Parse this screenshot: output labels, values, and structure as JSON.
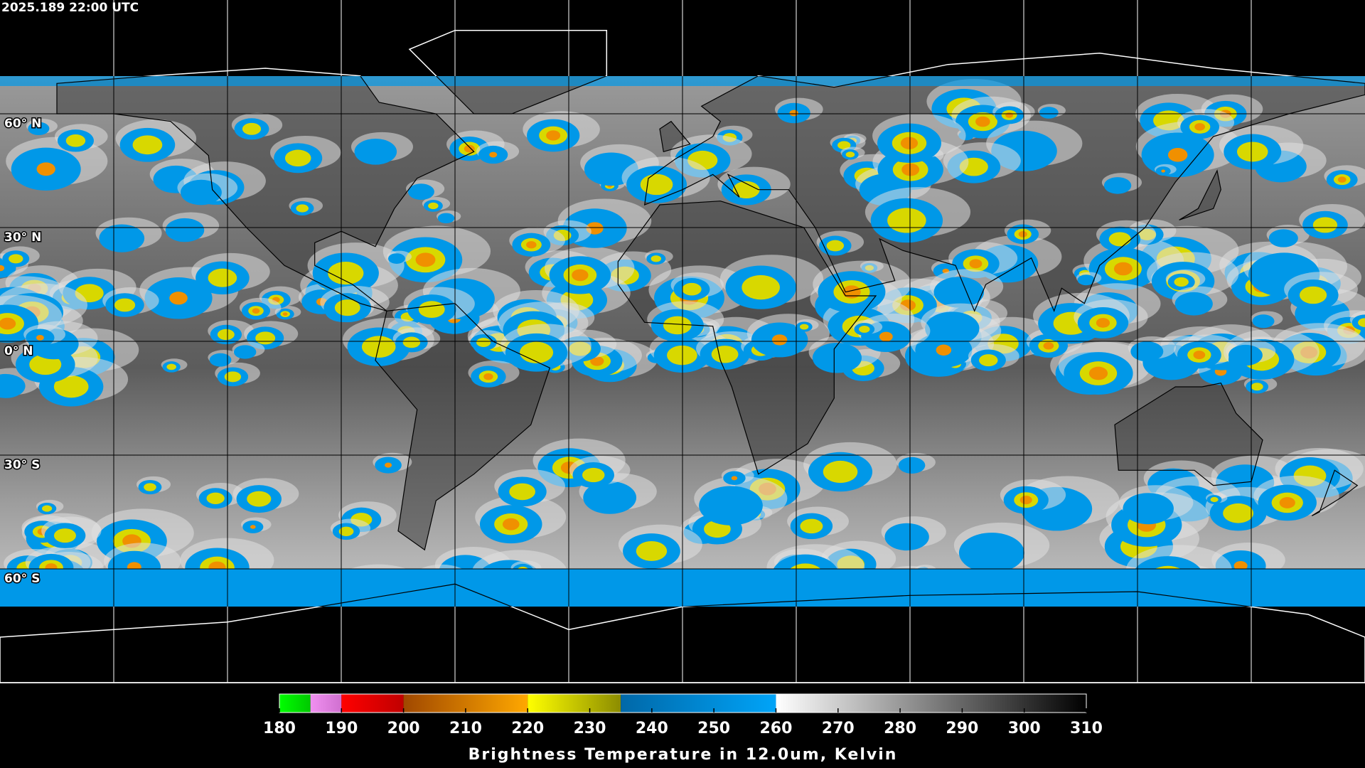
{
  "timestamp": "2025.189 22:00 UTC",
  "latitude_labels": [
    "60° N",
    "30° N",
    "0° N",
    "30° S",
    "60° S"
  ],
  "colorbar": {
    "title": "Brightness Temperature in 12.0um, Kelvin",
    "range": [
      180,
      310
    ],
    "ticks": [
      180,
      190,
      200,
      210,
      220,
      230,
      240,
      250,
      260,
      270,
      280,
      290,
      300,
      310
    ],
    "segments": [
      {
        "from": 180,
        "to": 185,
        "colors": [
          "#00ff00",
          "#00c800"
        ]
      },
      {
        "from": 185,
        "to": 190,
        "colors": [
          "#f090f0",
          "#d070d0"
        ]
      },
      {
        "from": 190,
        "to": 200,
        "colors": [
          "#ff0000",
          "#c00000"
        ]
      },
      {
        "from": 200,
        "to": 220,
        "colors": [
          "#a04800",
          "#ffa800"
        ]
      },
      {
        "from": 220,
        "to": 235,
        "colors": [
          "#ffff00",
          "#8c8c00"
        ]
      },
      {
        "from": 235,
        "to": 260,
        "colors": [
          "#0068a8",
          "#00a4f8"
        ]
      },
      {
        "from": 260,
        "to": 310,
        "colors": [
          "#ffffff",
          "#000000"
        ]
      }
    ]
  }
}
